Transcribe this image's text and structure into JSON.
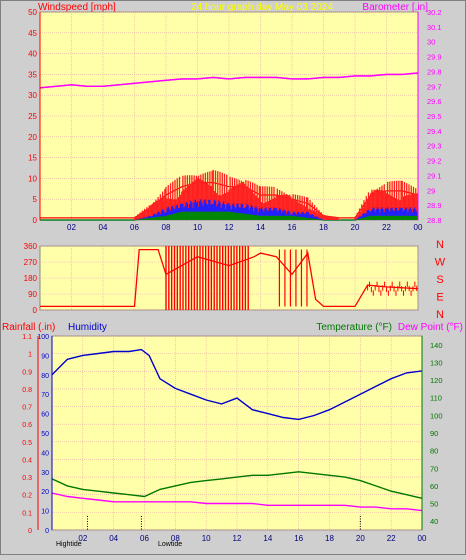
{
  "header": {
    "left_title": "Windspeed [mph]",
    "center_title": "24 hour graph day   May 03 2024",
    "right_title": "Barometer [.in]",
    "colors": {
      "left": "#ff0000",
      "center": "#ffff00",
      "right": "#ff00ff"
    }
  },
  "bottom_header": {
    "rainfall_label": "Rainfall (.in)",
    "humidity_label": "Humidity",
    "temperature_label": "Temperature (°F)",
    "dewpoint_label": "Dew Point (°F)",
    "colors": {
      "rainfall": "#ff0000",
      "humidity": "#0000cc",
      "temperature": "#007700",
      "dewpoint": "#ff00ff"
    }
  },
  "footer": {
    "hi_label": "Hightide",
    "lo_label": "Lowtide"
  },
  "chart_data": [
    {
      "type": "line",
      "name": "wind-barometer",
      "x_ticks": [
        "02",
        "04",
        "06",
        "08",
        "10",
        "12",
        "14",
        "16",
        "18",
        "20",
        "22",
        "00"
      ],
      "x_range": [
        0,
        24
      ],
      "y_left": {
        "label": "Windspeed [mph]",
        "range": [
          0,
          50
        ],
        "ticks": [
          0,
          5,
          10,
          15,
          20,
          25,
          30,
          35,
          40,
          45,
          50
        ]
      },
      "y_right": {
        "label": "Barometer [.in]",
        "range": [
          28.8,
          30.2
        ],
        "ticks": [
          "28.8",
          "28.9",
          "29",
          "29.1",
          "29.2",
          "29.3",
          "29.4",
          "29.5",
          "29.6",
          "29.7",
          "29.8",
          "29.9",
          "30",
          "30.1",
          "30.2"
        ]
      },
      "series": [
        {
          "name": "Barometer",
          "color": "#ff00ff",
          "x": [
            0,
            1,
            2,
            3,
            4,
            5,
            6,
            7,
            8,
            9,
            10,
            11,
            12,
            13,
            14,
            15,
            16,
            17,
            18,
            19,
            20,
            21,
            22,
            23,
            24
          ],
          "y": [
            29.69,
            29.7,
            29.71,
            29.7,
            29.7,
            29.71,
            29.72,
            29.73,
            29.74,
            29.75,
            29.75,
            29.76,
            29.75,
            29.76,
            29.76,
            29.76,
            29.75,
            29.75,
            29.76,
            29.76,
            29.77,
            29.77,
            29.78,
            29.78,
            29.79
          ]
        },
        {
          "name": "Wind gust",
          "color": "#ff0000",
          "x": [
            0,
            6,
            7,
            8,
            9,
            10,
            11,
            12,
            13,
            14,
            15,
            16,
            17,
            18,
            19,
            20,
            21,
            22,
            23,
            24
          ],
          "y": [
            0.5,
            0.5,
            3,
            6,
            8,
            9,
            9,
            8,
            8,
            6,
            6,
            5,
            4,
            1,
            0.5,
            0.5,
            6,
            7,
            7,
            6
          ]
        },
        {
          "name": "Wind average",
          "color": "#0000ff",
          "x": [
            0,
            6,
            7,
            8,
            9,
            10,
            11,
            12,
            13,
            14,
            15,
            16,
            17,
            18,
            19,
            20,
            21,
            22,
            23,
            24
          ],
          "y": [
            0,
            0,
            1,
            3,
            4,
            5,
            5,
            4,
            4,
            3,
            3,
            2,
            2,
            0,
            0,
            0,
            3,
            3,
            3,
            3
          ]
        },
        {
          "name": "Wind speed",
          "color": "#008800",
          "x": [
            0,
            6,
            7,
            8,
            9,
            10,
            11,
            12,
            13,
            14,
            15,
            16,
            17,
            18,
            19,
            20,
            21,
            22,
            23,
            24
          ],
          "y": [
            0,
            0,
            0.5,
            1,
            2,
            2,
            2,
            2,
            1.5,
            1,
            1,
            1,
            0.5,
            0,
            0,
            0,
            1,
            1,
            1,
            1
          ]
        }
      ]
    },
    {
      "type": "line",
      "name": "wind-direction",
      "x_range": [
        0,
        24
      ],
      "y_left": {
        "range": [
          0,
          360
        ],
        "ticks": [
          0,
          90,
          180,
          270,
          360
        ]
      },
      "y_right_labels": [
        "N",
        "W",
        "S",
        "E",
        "N"
      ],
      "series": [
        {
          "name": "Wind direction",
          "color": "#ff0000",
          "x": [
            0,
            6,
            6.3,
            7.5,
            8,
            10,
            12,
            13,
            13.6,
            14,
            15,
            16,
            17,
            17.5,
            18,
            20,
            20.8,
            22,
            24
          ],
          "y": [
            20,
            20,
            340,
            340,
            200,
            300,
            250,
            280,
            300,
            320,
            300,
            200,
            320,
            60,
            20,
            20,
            140,
            130,
            120
          ]
        }
      ]
    },
    {
      "type": "line",
      "name": "humidity-temperature",
      "x_ticks": [
        "02",
        "04",
        "06",
        "08",
        "10",
        "12",
        "14",
        "16",
        "18",
        "20",
        "22",
        "00"
      ],
      "x_range": [
        0,
        24
      ],
      "y_left_outer": {
        "label": "Rainfall (.in)",
        "range": [
          0,
          1.1
        ],
        "ticks": [
          "0",
          "0.1",
          "0.2",
          "0.3",
          "0.4",
          "0.5",
          "0.6",
          "0.7",
          "0.8",
          "0.9",
          "1",
          "1.1"
        ]
      },
      "y_left_inner": {
        "label": "Humidity",
        "range": [
          0,
          100
        ],
        "ticks": [
          0,
          10,
          20,
          30,
          40,
          50,
          60,
          70,
          80,
          90,
          100
        ]
      },
      "y_right": {
        "label": "Temperature (°F)",
        "range": [
          35,
          145
        ],
        "ticks": [
          40,
          50,
          60,
          70,
          80,
          90,
          100,
          110,
          120,
          130,
          140
        ]
      },
      "series": [
        {
          "name": "Humidity",
          "color": "#0000cc",
          "x": [
            0,
            0.5,
            1,
            2,
            3,
            4,
            5,
            5.8,
            6.3,
            7,
            8,
            9,
            10,
            11,
            12,
            13,
            14,
            15,
            16,
            17,
            18,
            19,
            20,
            21,
            22,
            23,
            24
          ],
          "y": [
            80,
            84,
            88,
            90,
            91,
            92,
            92,
            93,
            90,
            78,
            73,
            70,
            67,
            65,
            68,
            62,
            60,
            58,
            57,
            59,
            62,
            66,
            70,
            74,
            78,
            81,
            82
          ]
        },
        {
          "name": "Temperature",
          "color": "#007700",
          "x": [
            0,
            1,
            2,
            3,
            4,
            5,
            6,
            7,
            8,
            9,
            10,
            11,
            12,
            13,
            14,
            15,
            16,
            17,
            18,
            19,
            20,
            21,
            22,
            23,
            24
          ],
          "y": [
            64,
            60,
            58,
            57,
            56,
            55,
            54,
            58,
            60,
            62,
            63,
            64,
            65,
            66,
            66,
            67,
            68,
            67,
            66,
            65,
            63,
            60,
            57,
            55,
            53
          ]
        },
        {
          "name": "Dew Point",
          "color": "#ff00ff",
          "x": [
            0,
            1,
            2,
            3,
            4,
            5,
            6,
            7,
            8,
            9,
            10,
            11,
            12,
            13,
            14,
            15,
            16,
            17,
            18,
            19,
            20,
            21,
            22,
            23,
            24
          ],
          "y": [
            56,
            54,
            53,
            52,
            51,
            51,
            51,
            51,
            51,
            51,
            50,
            50,
            50,
            50,
            49,
            49,
            49,
            49,
            49,
            49,
            48,
            48,
            47,
            47,
            46
          ]
        }
      ],
      "tide_markers": [
        2.3,
        5.8,
        20
      ]
    }
  ]
}
